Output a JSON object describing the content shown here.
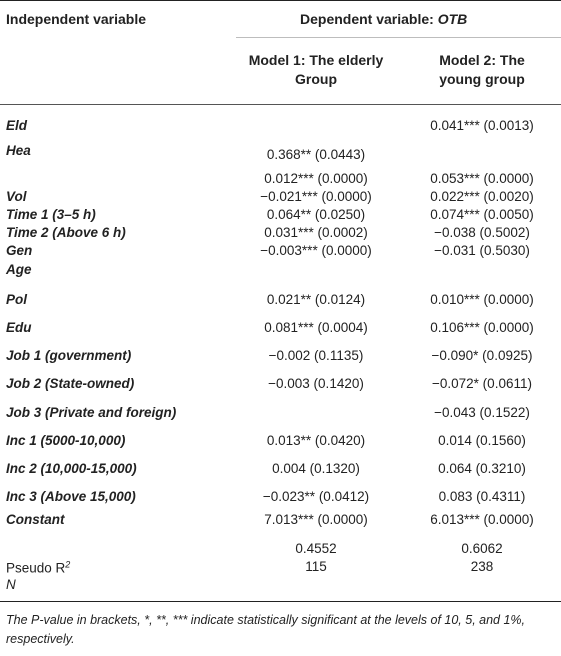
{
  "header": {
    "independent": "Independent variable",
    "dependent": "Dependent variable: ",
    "dependent_var": "OTB",
    "model1_line1": "Model 1: The elderly",
    "model1_line2": "Group",
    "model2_line1": "Model 2: The",
    "model2_line2": "young group"
  },
  "rows": [
    {
      "label": "Eld",
      "m1": "",
      "m2": "0.041*** (0.0013)"
    },
    {
      "label": "Hea",
      "m1": "0.368** (0.0443)",
      "m2": ""
    },
    {
      "label": "",
      "m1": "0.012*** (0.0000)",
      "m2": "0.053*** (0.0000)"
    },
    {
      "label": "Vol",
      "m1": "−0.021*** (0.0000)",
      "m2": "0.022*** (0.0020)"
    },
    {
      "label": "Time 1 (3–5 h)",
      "m1": "0.064** (0.0250)",
      "m2": "0.074*** (0.0050)"
    },
    {
      "label": "Time 2 (Above 6 h)",
      "m1": "0.031*** (0.0002)",
      "m2": "−0.038 (0.5002)"
    },
    {
      "label": "Gen",
      "m1": "−0.003*** (0.0000)",
      "m2": "−0.031 (0.5030)"
    },
    {
      "label": "Age",
      "m1": "",
      "m2": ""
    },
    {
      "label": "Pol",
      "m1": "0.021** (0.0124)",
      "m2": "0.010*** (0.0000)"
    },
    {
      "label": "Edu",
      "m1": "0.081*** (0.0004)",
      "m2": "0.106*** (0.0000)"
    },
    {
      "label": "Job 1 (government)",
      "m1": "−0.002 (0.1135)",
      "m2": "−0.090* (0.0925)"
    },
    {
      "label": "Job 2 (State-owned)",
      "m1": "−0.003 (0.1420)",
      "m2": "−0.072* (0.0611)"
    },
    {
      "label": "Job 3 (Private and foreign)",
      "m1": "",
      "m2": "−0.043 (0.1522)"
    },
    {
      "label": "Inc 1 (5000-10,000)",
      "m1": "0.013** (0.0420)",
      "m2": "0.014 (0.1560)"
    },
    {
      "label": "Inc 2 (10,000-15,000)",
      "m1": "0.004 (0.1320)",
      "m2": "0.064 (0.3210)"
    },
    {
      "label": "Inc 3 (Above 15,000)",
      "m1": "−0.023** (0.0412)",
      "m2": "0.083 (0.4311)"
    },
    {
      "label": "Constant",
      "m1": "7.013*** (0.0000)",
      "m2": "6.013*** (0.0000)"
    }
  ],
  "stats": {
    "pseudo_r2_label": "Pseudo R",
    "pseudo_r2_sup": "2",
    "n_label": "N",
    "m1_r2": "0.4552",
    "m2_r2": "0.6062",
    "m1_n": "115",
    "m2_n": "238"
  },
  "footnote": "The P-value in brackets, *, **, *** indicate statistically significant at the levels of 10, 5, and 1%, respectively."
}
